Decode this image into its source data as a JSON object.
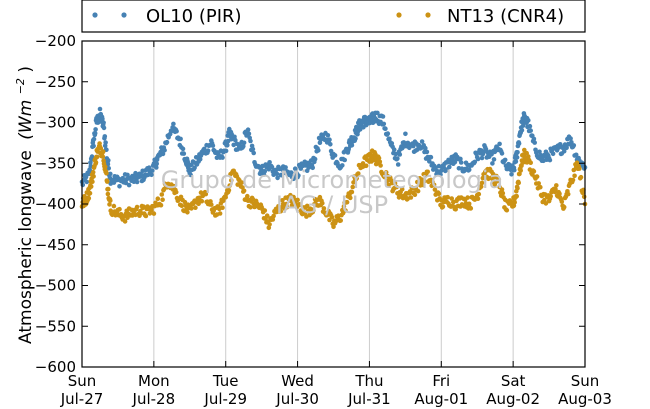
{
  "chart_data": {
    "type": "scatter",
    "title": "",
    "ylabel": "Atmospheric longwave (Wm⁻²)",
    "ylabel_main": "Atmospheric longwave",
    "ylabel_unit": "(Wm",
    "ylabel_exp": "−2",
    "ylabel_close": ")",
    "xlabel": "",
    "ylim": [
      -600,
      -200
    ],
    "yticks": [
      -200,
      -250,
      -300,
      -350,
      -400,
      -450,
      -500,
      -550,
      -600
    ],
    "yticklabels": [
      "−200",
      "−250",
      "−300",
      "−350",
      "−400",
      "−450",
      "−500",
      "−550",
      "−600"
    ],
    "xlim": [
      0,
      7
    ],
    "xticks": [
      {
        "day": "Sun",
        "date": "Jul-27"
      },
      {
        "day": "Mon",
        "date": "Jul-28"
      },
      {
        "day": "Tue",
        "date": "Jul-29"
      },
      {
        "day": "Wed",
        "date": "Jul-30"
      },
      {
        "day": "Thu",
        "date": "Jul-31"
      },
      {
        "day": "Fri",
        "date": "Aug-01"
      },
      {
        "day": "Sat",
        "date": "Aug-02"
      },
      {
        "day": "Sun",
        "date": "Aug-03"
      }
    ],
    "grid": "vertical",
    "legend_placement": "top, outside plot",
    "watermark": [
      "Grupo de Micrometeorologia",
      "IAG / USP"
    ],
    "series": [
      {
        "name": "OL10 (PIR)",
        "color": "#4682b4",
        "points": [
          [
            0.0,
            -375
          ],
          [
            0.1,
            -365
          ],
          [
            0.15,
            -330
          ],
          [
            0.2,
            -300
          ],
          [
            0.25,
            -290
          ],
          [
            0.3,
            -305
          ],
          [
            0.35,
            -345
          ],
          [
            0.4,
            -368
          ],
          [
            0.5,
            -372
          ],
          [
            0.6,
            -370
          ],
          [
            0.7,
            -370
          ],
          [
            0.8,
            -368
          ],
          [
            0.9,
            -362
          ],
          [
            1.0,
            -355
          ],
          [
            1.05,
            -345
          ],
          [
            1.15,
            -330
          ],
          [
            1.25,
            -305
          ],
          [
            1.35,
            -320
          ],
          [
            1.45,
            -345
          ],
          [
            1.5,
            -360
          ],
          [
            1.6,
            -348
          ],
          [
            1.7,
            -335
          ],
          [
            1.8,
            -325
          ],
          [
            1.9,
            -345
          ],
          [
            2.0,
            -330
          ],
          [
            2.05,
            -315
          ],
          [
            2.1,
            -320
          ],
          [
            2.2,
            -335
          ],
          [
            2.3,
            -310
          ],
          [
            2.4,
            -345
          ],
          [
            2.5,
            -360
          ],
          [
            2.6,
            -352
          ],
          [
            2.7,
            -362
          ],
          [
            2.8,
            -360
          ],
          [
            2.9,
            -365
          ],
          [
            3.0,
            -360
          ],
          [
            3.1,
            -355
          ],
          [
            3.2,
            -352
          ],
          [
            3.3,
            -325
          ],
          [
            3.4,
            -315
          ],
          [
            3.5,
            -340
          ],
          [
            3.6,
            -352
          ],
          [
            3.7,
            -330
          ],
          [
            3.75,
            -322
          ],
          [
            3.8,
            -315
          ],
          [
            3.85,
            -305
          ],
          [
            3.9,
            -300
          ],
          [
            3.95,
            -298
          ],
          [
            4.0,
            -300
          ],
          [
            4.05,
            -295
          ],
          [
            4.1,
            -292
          ],
          [
            4.2,
            -300
          ],
          [
            4.3,
            -330
          ],
          [
            4.4,
            -345
          ],
          [
            4.5,
            -320
          ],
          [
            4.6,
            -330
          ],
          [
            4.7,
            -325
          ],
          [
            4.8,
            -340
          ],
          [
            4.9,
            -355
          ],
          [
            5.0,
            -360
          ],
          [
            5.1,
            -350
          ],
          [
            5.2,
            -345
          ],
          [
            5.3,
            -355
          ],
          [
            5.4,
            -355
          ],
          [
            5.5,
            -340
          ],
          [
            5.6,
            -335
          ],
          [
            5.7,
            -345
          ],
          [
            5.8,
            -330
          ],
          [
            5.9,
            -355
          ],
          [
            6.0,
            -360
          ],
          [
            6.05,
            -340
          ],
          [
            6.1,
            -310
          ],
          [
            6.15,
            -295
          ],
          [
            6.2,
            -300
          ],
          [
            6.3,
            -330
          ],
          [
            6.4,
            -345
          ],
          [
            6.5,
            -340
          ],
          [
            6.6,
            -335
          ],
          [
            6.7,
            -330
          ],
          [
            6.8,
            -320
          ],
          [
            6.9,
            -345
          ],
          [
            7.0,
            -355
          ]
        ]
      },
      {
        "name": "NT13 (CNR4)",
        "color": "#cc9214",
        "points": [
          [
            0.0,
            -400
          ],
          [
            0.05,
            -395
          ],
          [
            0.1,
            -385
          ],
          [
            0.15,
            -365
          ],
          [
            0.2,
            -340
          ],
          [
            0.25,
            -330
          ],
          [
            0.3,
            -340
          ],
          [
            0.35,
            -375
          ],
          [
            0.4,
            -405
          ],
          [
            0.5,
            -412
          ],
          [
            0.6,
            -415
          ],
          [
            0.7,
            -410
          ],
          [
            0.8,
            -408
          ],
          [
            0.9,
            -410
          ],
          [
            1.0,
            -405
          ],
          [
            1.1,
            -395
          ],
          [
            1.2,
            -370
          ],
          [
            1.3,
            -385
          ],
          [
            1.4,
            -400
          ],
          [
            1.5,
            -410
          ],
          [
            1.6,
            -395
          ],
          [
            1.7,
            -390
          ],
          [
            1.8,
            -405
          ],
          [
            1.9,
            -410
          ],
          [
            2.0,
            -390
          ],
          [
            2.1,
            -360
          ],
          [
            2.2,
            -375
          ],
          [
            2.3,
            -395
          ],
          [
            2.4,
            -400
          ],
          [
            2.5,
            -405
          ],
          [
            2.6,
            -425
          ],
          [
            2.7,
            -410
          ],
          [
            2.8,
            -400
          ],
          [
            2.9,
            -395
          ],
          [
            3.0,
            -400
          ],
          [
            3.1,
            -410
          ],
          [
            3.2,
            -405
          ],
          [
            3.3,
            -395
          ],
          [
            3.4,
            -410
          ],
          [
            3.5,
            -425
          ],
          [
            3.6,
            -415
          ],
          [
            3.7,
            -395
          ],
          [
            3.8,
            -370
          ],
          [
            3.9,
            -350
          ],
          [
            4.0,
            -345
          ],
          [
            4.05,
            -340
          ],
          [
            4.1,
            -345
          ],
          [
            4.2,
            -360
          ],
          [
            4.3,
            -375
          ],
          [
            4.4,
            -385
          ],
          [
            4.5,
            -390
          ],
          [
            4.6,
            -385
          ],
          [
            4.7,
            -375
          ],
          [
            4.8,
            -365
          ],
          [
            4.9,
            -380
          ],
          [
            5.0,
            -400
          ],
          [
            5.1,
            -395
          ],
          [
            5.2,
            -400
          ],
          [
            5.3,
            -395
          ],
          [
            5.4,
            -400
          ],
          [
            5.5,
            -390
          ],
          [
            5.6,
            -360
          ],
          [
            5.7,
            -365
          ],
          [
            5.8,
            -375
          ],
          [
            5.9,
            -405
          ],
          [
            6.0,
            -400
          ],
          [
            6.05,
            -385
          ],
          [
            6.1,
            -355
          ],
          [
            6.15,
            -340
          ],
          [
            6.2,
            -345
          ],
          [
            6.3,
            -365
          ],
          [
            6.4,
            -390
          ],
          [
            6.5,
            -395
          ],
          [
            6.6,
            -380
          ],
          [
            6.7,
            -405
          ],
          [
            6.8,
            -375
          ],
          [
            6.9,
            -350
          ],
          [
            7.0,
            -400
          ]
        ]
      }
    ]
  }
}
